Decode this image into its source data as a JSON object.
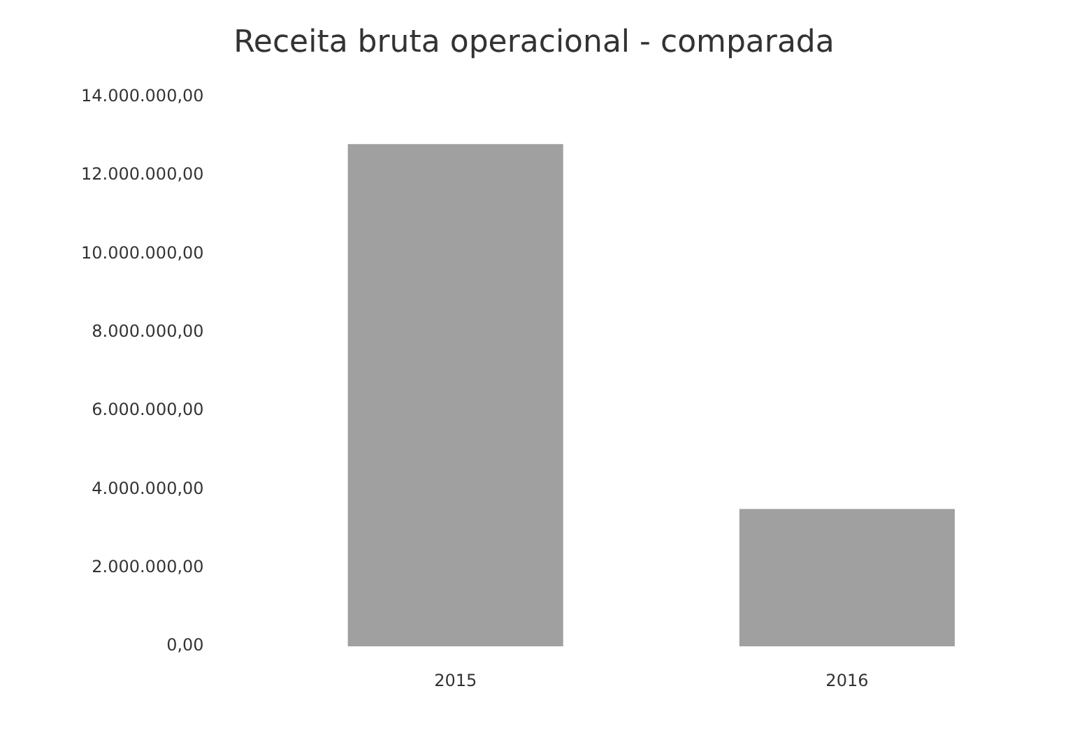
{
  "chart_data": {
    "type": "bar",
    "title": "Receita bruta operacional - comparada",
    "categories": [
      "2015",
      "2016"
    ],
    "series": [
      {
        "color": "#a0a0a0",
        "values": [
          12800000,
          3500000
        ]
      }
    ],
    "ylim": [
      0,
      14000000
    ],
    "yticks": [
      {
        "value": 0,
        "label": "0,00"
      },
      {
        "value": 2000000,
        "label": "2.000.000,00"
      },
      {
        "value": 4000000,
        "label": "4.000.000,00"
      },
      {
        "value": 6000000,
        "label": "6.000.000,00"
      },
      {
        "value": 8000000,
        "label": "8.000.000,00"
      },
      {
        "value": 10000000,
        "label": "10.000.000,00"
      },
      {
        "value": 12000000,
        "label": "12.000.000,00"
      },
      {
        "value": 14000000,
        "label": "14.000.000,00"
      }
    ],
    "grid": false,
    "legend": false
  }
}
